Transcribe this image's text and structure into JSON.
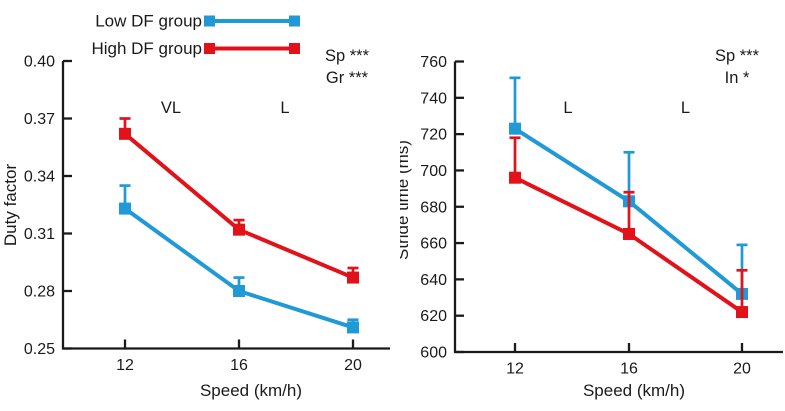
{
  "colors": {
    "low_df": "#1f9ad6",
    "high_df": "#e11219",
    "axis": "#1a1a1a",
    "text": "#1a1a1a",
    "background": "#ffffff"
  },
  "legend": {
    "items": [
      {
        "label": "Low DF group",
        "color_key": "low_df"
      },
      {
        "label": "High DF group",
        "color_key": "high_df"
      }
    ]
  },
  "chart_data": [
    {
      "type": "line",
      "title": "",
      "xlabel": "Speed (km/h)",
      "ylabel": "Duty factor",
      "x": [
        12,
        16,
        20
      ],
      "x_tick_labels": [
        "12",
        "16",
        "20"
      ],
      "ylim": [
        0.25,
        0.4
      ],
      "y_ticks": [
        0.25,
        0.28,
        0.31,
        0.34,
        0.37,
        0.4
      ],
      "y_tick_labels": [
        "0.25",
        "0.28",
        "0.31",
        "0.34",
        "0.37",
        "0.40"
      ],
      "grid": false,
      "error_bars": "upper",
      "legend_position": "top",
      "series": [
        {
          "name": "Low DF group",
          "color_key": "low_df",
          "values": [
            0.323,
            0.28,
            0.261
          ],
          "error_up": [
            0.012,
            0.007,
            0.004
          ]
        },
        {
          "name": "High DF group",
          "color_key": "high_df",
          "values": [
            0.362,
            0.312,
            0.287
          ],
          "error_up": [
            0.008,
            0.005,
            0.005
          ]
        }
      ],
      "stats_annotations": [
        "Sp ***",
        "Gr ***"
      ],
      "segment_labels": [
        "VL",
        "L"
      ]
    },
    {
      "type": "line",
      "title": "",
      "xlabel": "Speed (km/h)",
      "ylabel": "Stride time (ms)",
      "x": [
        12,
        16,
        20
      ],
      "x_tick_labels": [
        "12",
        "16",
        "20"
      ],
      "ylim": [
        600,
        760
      ],
      "y_ticks": [
        600,
        620,
        640,
        660,
        680,
        700,
        720,
        740,
        760
      ],
      "y_tick_labels": [
        "600",
        "620",
        "640",
        "660",
        "680",
        "700",
        "720",
        "740",
        "760"
      ],
      "grid": false,
      "error_bars": "upper",
      "series": [
        {
          "name": "Low DF group",
          "color_key": "low_df",
          "values": [
            723,
            683,
            632
          ],
          "error_up": [
            28,
            27,
            27
          ]
        },
        {
          "name": "High DF group",
          "color_key": "high_df",
          "values": [
            696,
            665,
            622
          ],
          "error_up": [
            22,
            23,
            23
          ]
        }
      ],
      "stats_annotations": [
        "Sp ***",
        "In *"
      ],
      "segment_labels": [
        "L",
        "L"
      ]
    }
  ]
}
